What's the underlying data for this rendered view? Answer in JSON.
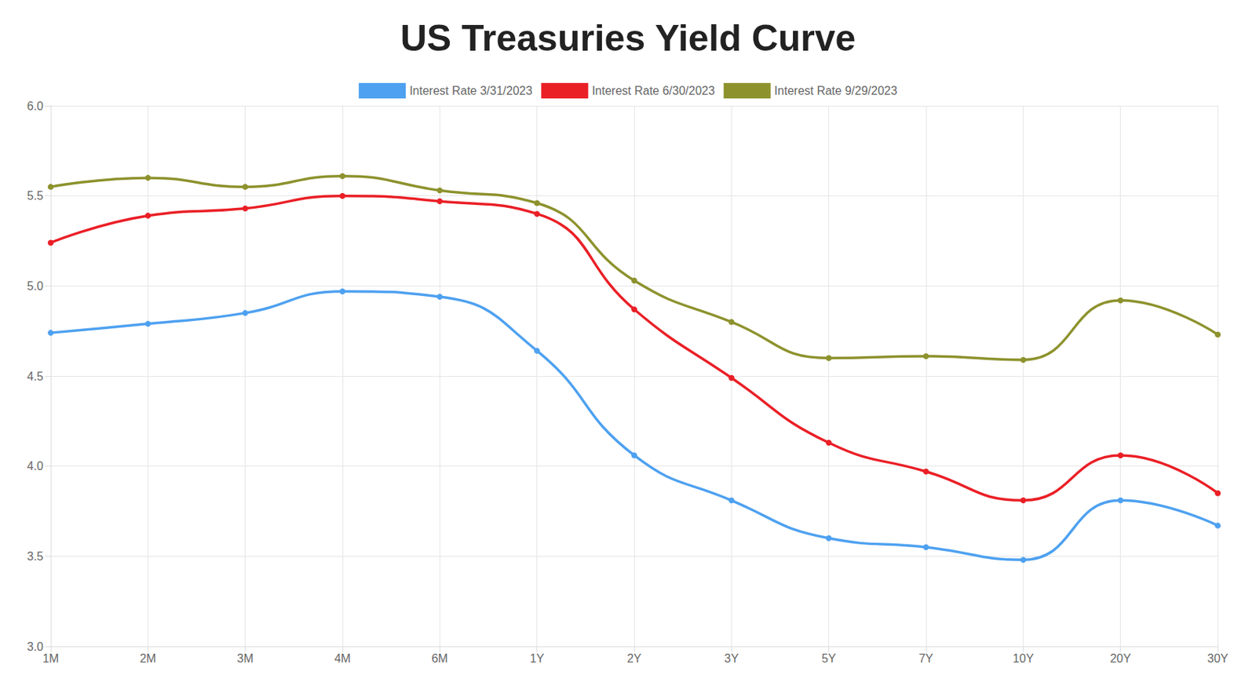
{
  "chart_data": {
    "type": "line",
    "title": "US Treasuries Yield Curve",
    "categories": [
      "1M",
      "2M",
      "3M",
      "4M",
      "6M",
      "1Y",
      "2Y",
      "3Y",
      "5Y",
      "7Y",
      "10Y",
      "20Y",
      "30Y"
    ],
    "series": [
      {
        "name": "Interest Rate 3/31/2023",
        "color": "#4ea1f0",
        "values": [
          4.74,
          4.79,
          4.85,
          4.97,
          4.94,
          4.64,
          4.06,
          3.81,
          3.6,
          3.55,
          3.48,
          3.81,
          3.67
        ]
      },
      {
        "name": "Interest Rate 6/30/2023",
        "color": "#ea1f26",
        "values": [
          5.24,
          5.39,
          5.43,
          5.5,
          5.47,
          5.4,
          4.87,
          4.49,
          4.13,
          3.97,
          3.81,
          4.06,
          3.85
        ]
      },
      {
        "name": "Interest Rate 9/29/2023",
        "color": "#8d922d",
        "values": [
          5.55,
          5.6,
          5.55,
          5.61,
          5.53,
          5.46,
          5.03,
          4.8,
          4.6,
          4.61,
          4.59,
          4.92,
          4.73
        ]
      }
    ],
    "ylim": [
      3,
      6
    ],
    "yticks": [
      {
        "value": 3,
        "label": "3.0"
      },
      3.5,
      {
        "value": 4,
        "label": "4.0"
      },
      4.5,
      {
        "value": 5,
        "label": "5.0"
      },
      5.5,
      {
        "value": 6,
        "label": "6.0"
      }
    ],
    "grid": true,
    "legend": "top",
    "marker": "circle",
    "line_style": "smooth"
  }
}
